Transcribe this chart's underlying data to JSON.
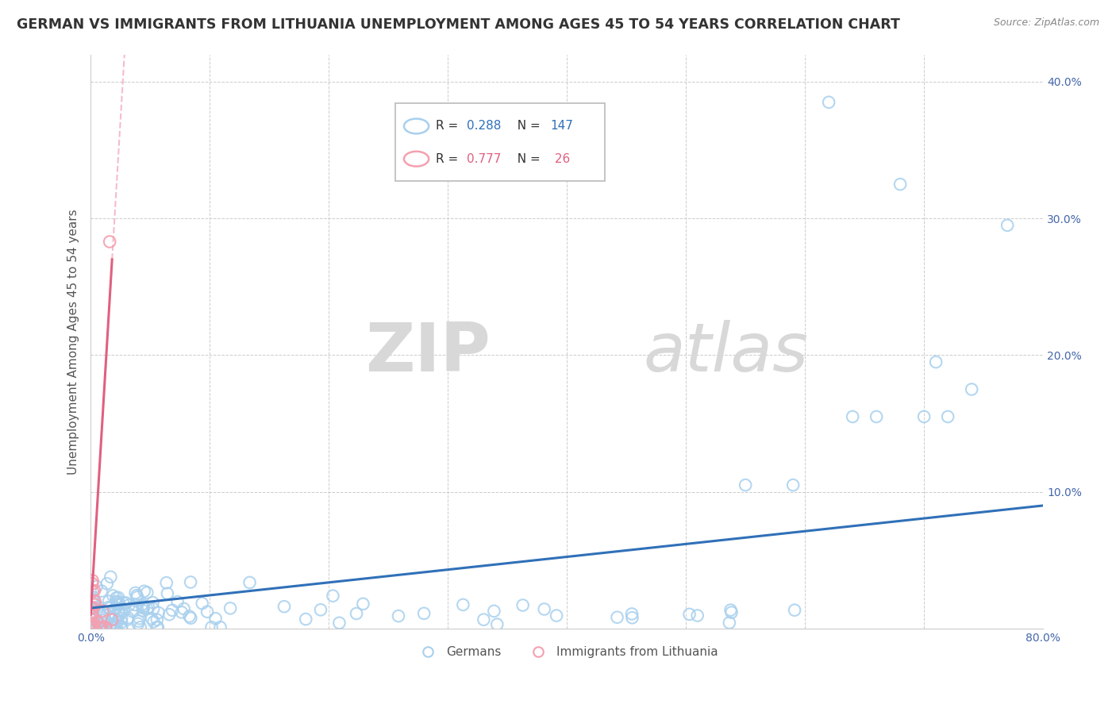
{
  "title": "GERMAN VS IMMIGRANTS FROM LITHUANIA UNEMPLOYMENT AMONG AGES 45 TO 54 YEARS CORRELATION CHART",
  "source": "Source: ZipAtlas.com",
  "ylabel": "Unemployment Among Ages 45 to 54 years",
  "watermark_zip": "ZIP",
  "watermark_atlas": "atlas",
  "xlim": [
    0.0,
    0.8
  ],
  "ylim": [
    0.0,
    0.42
  ],
  "xticks": [
    0.0,
    0.1,
    0.2,
    0.3,
    0.4,
    0.5,
    0.6,
    0.7,
    0.8
  ],
  "xticklabels": [
    "0.0%",
    "",
    "",
    "",
    "",
    "",
    "",
    "",
    "80.0%"
  ],
  "yticks": [
    0.1,
    0.2,
    0.3,
    0.4
  ],
  "yticklabels": [
    "10.0%",
    "20.0%",
    "30.0%",
    "40.0%"
  ],
  "german_color": "#a8d0ee",
  "lithuania_color": "#f4a0b0",
  "german_line_color": "#3070b8",
  "lithuania_line_color": "#e06080",
  "lithuania_dash_color": "#f0a0b8",
  "background_color": "#ffffff",
  "grid_color": "#cccccc",
  "title_color": "#333333",
  "title_fontsize": 12.5,
  "source_fontsize": 9,
  "axis_label_color": "#555555",
  "r_color_german": "#3070b8",
  "r_color_lithuania": "#e06080",
  "n_color_german": "#e06010",
  "n_color_lithuania": "#e06010",
  "legend_r1": "R = 0.288",
  "legend_n1": "N = 147",
  "legend_r2": "R = 0.777",
  "legend_n2": "N =  26",
  "legend_label1": "Germans",
  "legend_label2": "Immigrants from Lithuania"
}
